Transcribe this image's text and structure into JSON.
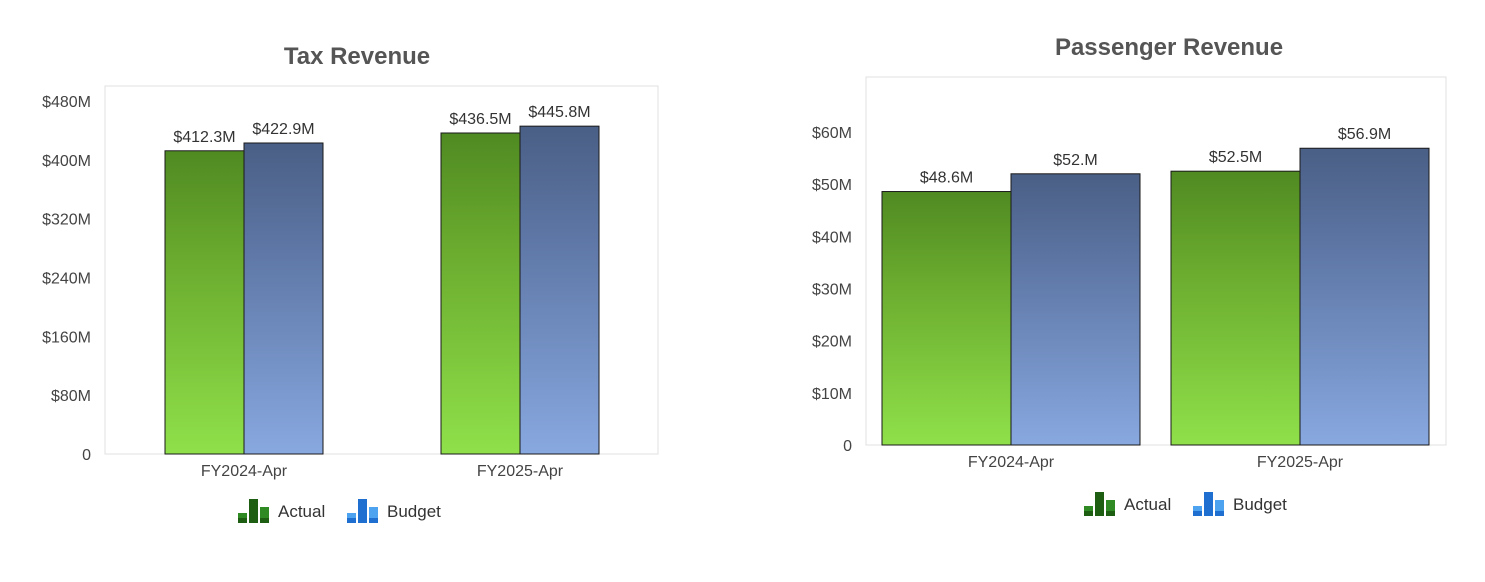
{
  "chart_data": [
    {
      "type": "bar",
      "title": "Tax Revenue",
      "categories": [
        "FY2024-Apr",
        "FY2025-Apr"
      ],
      "series": [
        {
          "name": "Actual",
          "values": [
            412.3,
            436.5
          ],
          "labels": [
            "$412.3M",
            "$436.5M"
          ],
          "color": "#6aaa2e"
        },
        {
          "name": "Budget",
          "values": [
            422.9,
            445.8
          ],
          "labels": [
            "$422.9M",
            "$445.8M"
          ],
          "color": "#6b86b8"
        }
      ],
      "ylim": [
        0,
        480
      ],
      "yticks": [
        0,
        80,
        160,
        240,
        320,
        400,
        480
      ],
      "ytick_labels": [
        "0",
        "$80M",
        "$160M",
        "$240M",
        "$320M",
        "$400M",
        "$480M"
      ],
      "xlabel": "",
      "ylabel": "",
      "grid": false,
      "legend": "bottom"
    },
    {
      "type": "bar",
      "title": "Passenger Revenue",
      "categories": [
        "FY2024-Apr",
        "FY2025-Apr"
      ],
      "series": [
        {
          "name": "Actual",
          "values": [
            48.6,
            52.5
          ],
          "labels": [
            "$48.6M",
            "$52.5M"
          ],
          "color": "#6aaa2e"
        },
        {
          "name": "Budget",
          "values": [
            52.0,
            56.9
          ],
          "labels": [
            "$52.M",
            "$56.9M"
          ],
          "color": "#6b86b8"
        }
      ],
      "ylim": [
        0,
        65
      ],
      "yticks": [
        0,
        10,
        20,
        30,
        40,
        50,
        60
      ],
      "ytick_labels": [
        "0",
        "$10M",
        "$20M",
        "$30M",
        "$40M",
        "$50M",
        "$60M"
      ],
      "xlabel": "",
      "ylabel": "",
      "grid": false,
      "legend": "bottom"
    }
  ]
}
